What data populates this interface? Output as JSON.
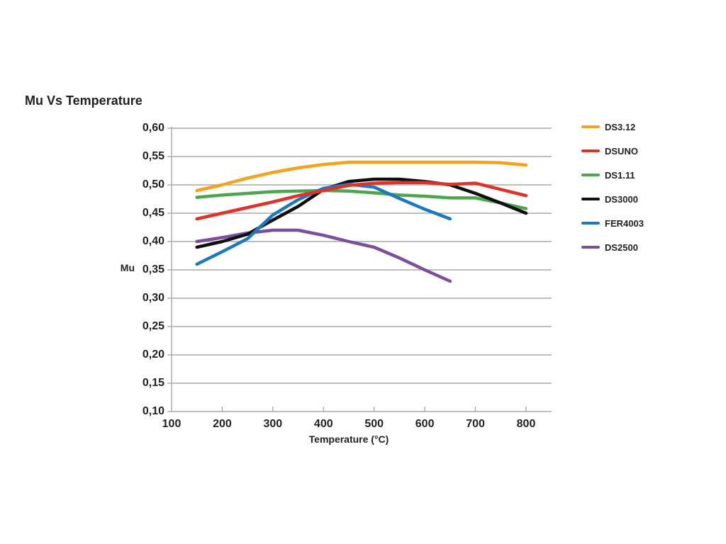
{
  "colors": {
    "text": "#231F20",
    "grid": "#A7A9AC",
    "background": "#FFFFFF"
  },
  "chart_data": {
    "type": "line",
    "title": "Mu Vs Temperature",
    "xlabel": "Temperature (°C)",
    "ylabel": "Mu",
    "xlim": [
      100,
      853
    ],
    "ylim": [
      0.1,
      0.6
    ],
    "x_ticks": [
      100,
      200,
      300,
      400,
      500,
      600,
      700,
      800
    ],
    "x_tick_labels": [
      "100",
      "200",
      "300",
      "400",
      "500",
      "600",
      "700",
      "800"
    ],
    "y_ticks": [
      0.6,
      0.55,
      0.5,
      0.45,
      0.4,
      0.35,
      0.3,
      0.25,
      0.2,
      0.15,
      0.1
    ],
    "y_tick_labels": [
      "0,60",
      "0,55",
      "0,50",
      "0,45",
      "0,40",
      "0,35",
      "0,30",
      "0,25",
      "0,20",
      "0,15",
      "0,10"
    ],
    "grid": "horizontal-only",
    "legend_position": "right-outside",
    "series": [
      {
        "name": "DS3.12",
        "color": "#F5A21D",
        "x": [
          150,
          200,
          250,
          300,
          350,
          400,
          450,
          500,
          550,
          600,
          650,
          700,
          750,
          800
        ],
        "values": [
          0.49,
          0.5,
          0.512,
          0.522,
          0.53,
          0.536,
          0.54,
          0.54,
          0.54,
          0.54,
          0.54,
          0.54,
          0.539,
          0.535
        ]
      },
      {
        "name": "DSUNO",
        "color": "#E23127",
        "x": [
          150,
          200,
          250,
          300,
          350,
          400,
          450,
          500,
          550,
          600,
          650,
          700,
          750,
          800
        ],
        "values": [
          0.44,
          0.45,
          0.46,
          0.47,
          0.481,
          0.49,
          0.499,
          0.503,
          0.504,
          0.504,
          0.501,
          0.503,
          0.492,
          0.481
        ]
      },
      {
        "name": "DS1.11",
        "color": "#4BA64F",
        "x": [
          150,
          200,
          250,
          300,
          350,
          400,
          450,
          500,
          550,
          600,
          650,
          700,
          750,
          800
        ],
        "values": [
          0.478,
          0.482,
          0.485,
          0.488,
          0.489,
          0.49,
          0.489,
          0.486,
          0.482,
          0.48,
          0.477,
          0.477,
          0.468,
          0.458
        ]
      },
      {
        "name": "DS3000",
        "color": "#0F0F0F",
        "x": [
          150,
          200,
          250,
          300,
          350,
          400,
          450,
          500,
          550,
          600,
          650,
          700,
          750,
          800
        ],
        "values": [
          0.39,
          0.4,
          0.413,
          0.438,
          0.462,
          0.492,
          0.506,
          0.51,
          0.51,
          0.506,
          0.5,
          0.485,
          0.468,
          0.45
        ]
      },
      {
        "name": "FER4003",
        "color": "#1E78BE",
        "x": [
          150,
          200,
          250,
          300,
          350,
          400,
          450,
          500,
          550,
          600,
          650
        ],
        "values": [
          0.36,
          0.382,
          0.405,
          0.447,
          0.474,
          0.494,
          0.501,
          0.496,
          0.476,
          0.457,
          0.44
        ]
      },
      {
        "name": "DS2500",
        "color": "#7A4F9D",
        "x": [
          150,
          200,
          250,
          300,
          350,
          400,
          450,
          500,
          550,
          600,
          650
        ],
        "values": [
          0.4,
          0.407,
          0.415,
          0.42,
          0.42,
          0.411,
          0.4,
          0.39,
          0.371,
          0.35,
          0.33
        ]
      }
    ]
  }
}
